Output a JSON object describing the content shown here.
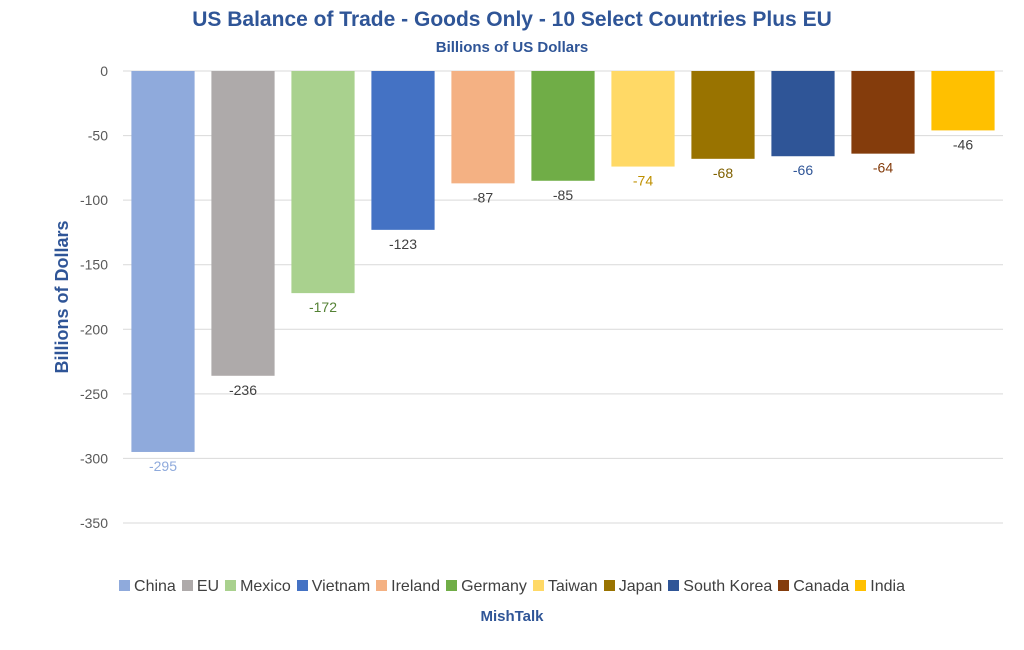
{
  "chart_data": {
    "type": "bar",
    "title": "US Balance of Trade - Goods Only - 10 Select Countries Plus EU",
    "subtitle": "Billions of US Dollars",
    "ylabel": "Billions of Dollars",
    "xlabel": "",
    "footer": "MishTalk",
    "ylim": [
      -350,
      0
    ],
    "ytick_step": 50,
    "grid": true,
    "legend_position": "bottom",
    "categories": [
      "China",
      "EU",
      "Mexico",
      "Vietnam",
      "Ireland",
      "Germany",
      "Taiwan",
      "Japan",
      "South Korea",
      "Canada",
      "India"
    ],
    "values": [
      -295,
      -236,
      -172,
      -123,
      -87,
      -85,
      -74,
      -68,
      -66,
      -64,
      -46
    ],
    "value_labels": [
      "-295",
      "-236",
      "-172",
      "-123",
      "-87",
      "-85",
      "-74",
      "-68",
      "-66",
      "-64",
      "-46"
    ],
    "colors": [
      "#8faadc",
      "#aeaaaa",
      "#a9d18e",
      "#4472c4",
      "#f4b183",
      "#70ad47",
      "#ffd966",
      "#997300",
      "#2f5597",
      "#843c0c",
      "#ffc000"
    ],
    "label_colors": [
      "#8faadc",
      "#404040",
      "#548235",
      "#404040",
      "#404040",
      "#404040",
      "#bf9000",
      "#7f6000",
      "#2f5597",
      "#843c0c",
      "#404040"
    ]
  }
}
